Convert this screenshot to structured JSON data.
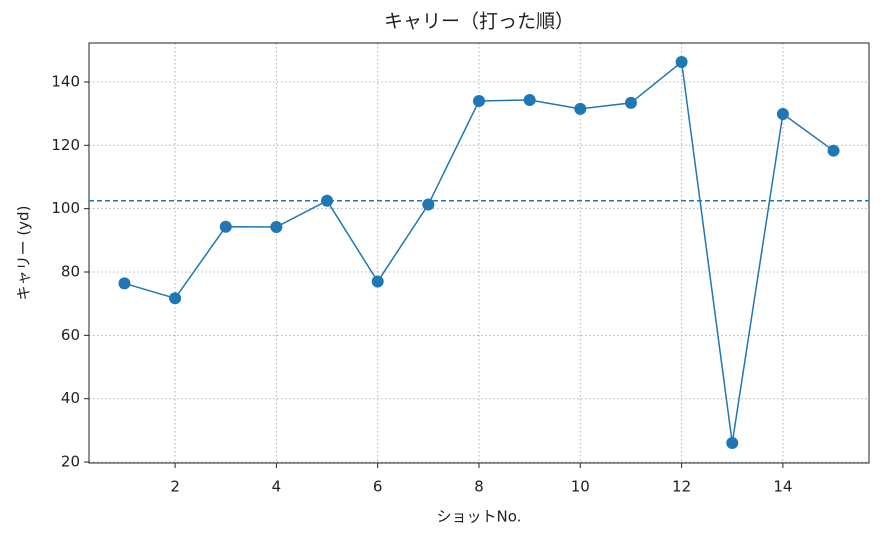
{
  "chart_data": {
    "type": "line",
    "title": "キャリー（打った順）",
    "x_label": "ショットNo.",
    "y_label": "キャリー (yd)",
    "x": [
      1,
      2,
      3,
      4,
      5,
      6,
      7,
      8,
      9,
      10,
      11,
      12,
      13,
      14,
      15
    ],
    "series": [
      {
        "name": "キャリー",
        "color": "#1f77b4",
        "values": [
          76.4,
          71.7,
          94.3,
          94.2,
          102.5,
          77.0,
          101.3,
          134.0,
          134.3,
          131.5,
          133.4,
          146.3,
          26.0,
          129.9,
          118.3
        ]
      }
    ],
    "reference_line": 102.5,
    "xlim": [
      0.3,
      15.7
    ],
    "xticks": [
      2,
      4,
      6,
      8,
      10,
      12,
      14
    ],
    "ylim": [
      19.7,
      152.3
    ],
    "yticks": [
      20,
      40,
      60,
      80,
      100,
      120,
      140
    ],
    "grid": true
  }
}
